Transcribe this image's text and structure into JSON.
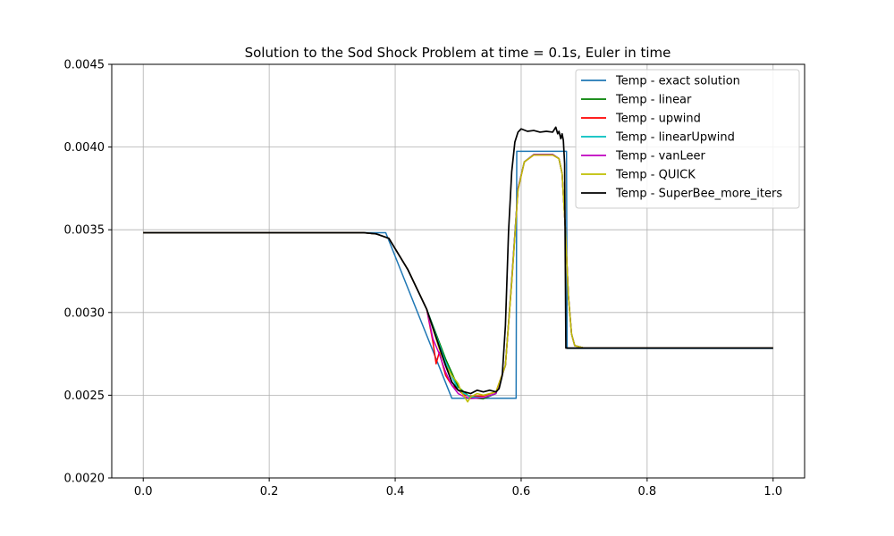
{
  "chart_data": {
    "type": "line",
    "title": "Solution to the Sod Shock Problem at time = 0.1s, Euler in time",
    "xlabel": "",
    "ylabel": "",
    "xlim": [
      -0.05,
      1.05
    ],
    "ylim": [
      0.002,
      0.0045
    ],
    "x_ticks": [
      0.0,
      0.2,
      0.4,
      0.6,
      0.8,
      1.0
    ],
    "x_tick_labels": [
      "0.0",
      "0.2",
      "0.4",
      "0.6",
      "0.8",
      "1.0"
    ],
    "y_ticks": [
      0.002,
      0.0025,
      0.003,
      0.0035,
      0.004,
      0.0045
    ],
    "y_tick_labels": [
      "0.0020",
      "0.0025",
      "0.0030",
      "0.0035",
      "0.0040",
      "0.0045"
    ],
    "grid": true,
    "legend_position": "top-right",
    "series": [
      {
        "name": "Temp - exact solution",
        "color": "#1f77b4",
        "x": [
          0.0,
          0.38,
          0.385,
          0.49,
          0.592,
          0.593,
          0.672,
          0.673,
          1.0
        ],
        "y": [
          0.003482,
          0.003482,
          0.003482,
          0.002481,
          0.002481,
          0.003974,
          0.003974,
          0.002783,
          0.002783
        ]
      },
      {
        "name": "Temp - linear",
        "color": "#008000",
        "x": [
          0.0,
          0.35,
          0.37,
          0.39,
          0.42,
          0.45,
          0.48,
          0.5,
          0.52,
          0.54,
          0.56,
          0.575,
          0.585,
          0.595,
          0.605,
          0.62,
          0.65,
          0.66,
          0.665,
          0.67,
          0.675,
          0.68,
          0.685,
          0.7,
          1.0
        ],
        "y": [
          0.003482,
          0.003482,
          0.003475,
          0.003448,
          0.00326,
          0.00302,
          0.00272,
          0.00255,
          0.002485,
          0.002478,
          0.00251,
          0.00268,
          0.0032,
          0.00375,
          0.00391,
          0.003955,
          0.003955,
          0.00393,
          0.00384,
          0.00352,
          0.0031,
          0.00287,
          0.0028,
          0.002785,
          0.002785
        ]
      },
      {
        "name": "Temp - upwind",
        "color": "#ff0000",
        "x": [
          0.0,
          0.35,
          0.37,
          0.39,
          0.42,
          0.45,
          0.46,
          0.465,
          0.47,
          0.48,
          0.49,
          0.5,
          0.51,
          0.52,
          0.54,
          0.56,
          0.575,
          0.585,
          0.595,
          0.605,
          0.62,
          0.65,
          0.66,
          0.665,
          0.67,
          0.675,
          0.68,
          0.685,
          0.7,
          1.0
        ],
        "y": [
          0.003482,
          0.003482,
          0.003475,
          0.003448,
          0.00326,
          0.00302,
          0.00282,
          0.00269,
          0.00276,
          0.00262,
          0.00256,
          0.00253,
          0.0025,
          0.002495,
          0.002495,
          0.00252,
          0.00268,
          0.00318,
          0.00374,
          0.00391,
          0.003952,
          0.003952,
          0.00393,
          0.00384,
          0.00352,
          0.0031,
          0.00287,
          0.0028,
          0.002785,
          0.002785
        ]
      },
      {
        "name": "Temp - linearUpwind",
        "color": "#00bfbf",
        "x": [
          0.0,
          0.35,
          0.37,
          0.39,
          0.42,
          0.45,
          0.48,
          0.5,
          0.52,
          0.54,
          0.56,
          0.575,
          0.585,
          0.595,
          0.605,
          0.62,
          0.65,
          0.66,
          0.665,
          0.67,
          0.675,
          0.68,
          0.685,
          0.7,
          1.0
        ],
        "y": [
          0.003482,
          0.003482,
          0.003475,
          0.003448,
          0.00326,
          0.00302,
          0.0027,
          0.00253,
          0.00249,
          0.002485,
          0.00251,
          0.00268,
          0.00319,
          0.00375,
          0.00391,
          0.003955,
          0.003955,
          0.00393,
          0.00384,
          0.00352,
          0.0031,
          0.00287,
          0.0028,
          0.002785,
          0.002785
        ]
      },
      {
        "name": "Temp - vanLeer",
        "color": "#bf00bf",
        "x": [
          0.0,
          0.35,
          0.37,
          0.39,
          0.42,
          0.45,
          0.46,
          0.47,
          0.48,
          0.49,
          0.5,
          0.51,
          0.52,
          0.54,
          0.56,
          0.575,
          0.585,
          0.595,
          0.605,
          0.62,
          0.65,
          0.66,
          0.665,
          0.67,
          0.675,
          0.68,
          0.685,
          0.7,
          1.0
        ],
        "y": [
          0.003482,
          0.003482,
          0.003475,
          0.003448,
          0.00326,
          0.00302,
          0.00284,
          0.00275,
          0.00264,
          0.00256,
          0.00251,
          0.00249,
          0.00248,
          0.002485,
          0.00251,
          0.00268,
          0.00319,
          0.00375,
          0.00391,
          0.003955,
          0.003955,
          0.00393,
          0.00384,
          0.00352,
          0.0031,
          0.00287,
          0.0028,
          0.002785,
          0.002785
        ]
      },
      {
        "name": "Temp - QUICK",
        "color": "#bfbf00",
        "x": [
          0.0,
          0.35,
          0.37,
          0.39,
          0.42,
          0.45,
          0.47,
          0.48,
          0.49,
          0.5,
          0.505,
          0.51,
          0.515,
          0.52,
          0.53,
          0.54,
          0.56,
          0.575,
          0.585,
          0.595,
          0.605,
          0.62,
          0.65,
          0.66,
          0.665,
          0.67,
          0.675,
          0.68,
          0.685,
          0.7,
          1.0
        ],
        "y": [
          0.003482,
          0.003482,
          0.003475,
          0.003448,
          0.00326,
          0.00302,
          0.00278,
          0.00268,
          0.00262,
          0.00257,
          0.00252,
          0.00249,
          0.00246,
          0.00249,
          0.00251,
          0.0025,
          0.00252,
          0.00268,
          0.00318,
          0.00374,
          0.00391,
          0.003952,
          0.003952,
          0.00393,
          0.00384,
          0.00352,
          0.0031,
          0.00287,
          0.0028,
          0.002785,
          0.002785
        ]
      },
      {
        "name": "Temp - SuperBee_more_iters",
        "color": "#000000",
        "x": [
          0.0,
          0.35,
          0.37,
          0.39,
          0.42,
          0.45,
          0.48,
          0.49,
          0.5,
          0.51,
          0.52,
          0.53,
          0.54,
          0.55,
          0.56,
          0.565,
          0.57,
          0.575,
          0.58,
          0.585,
          0.59,
          0.595,
          0.6,
          0.61,
          0.62,
          0.63,
          0.64,
          0.65,
          0.655,
          0.658,
          0.66,
          0.663,
          0.665,
          0.667,
          0.669,
          0.671,
          1.0
        ],
        "y": [
          0.003482,
          0.003482,
          0.003475,
          0.003448,
          0.00326,
          0.00302,
          0.00268,
          0.00258,
          0.00253,
          0.00252,
          0.00251,
          0.00253,
          0.00252,
          0.00253,
          0.00252,
          0.00254,
          0.00262,
          0.00292,
          0.00349,
          0.00385,
          0.00403,
          0.00409,
          0.00411,
          0.004095,
          0.0041,
          0.00409,
          0.004095,
          0.00409,
          0.00412,
          0.00408,
          0.004095,
          0.00405,
          0.00408,
          0.00404,
          0.0039,
          0.002785,
          0.002785
        ]
      }
    ]
  }
}
